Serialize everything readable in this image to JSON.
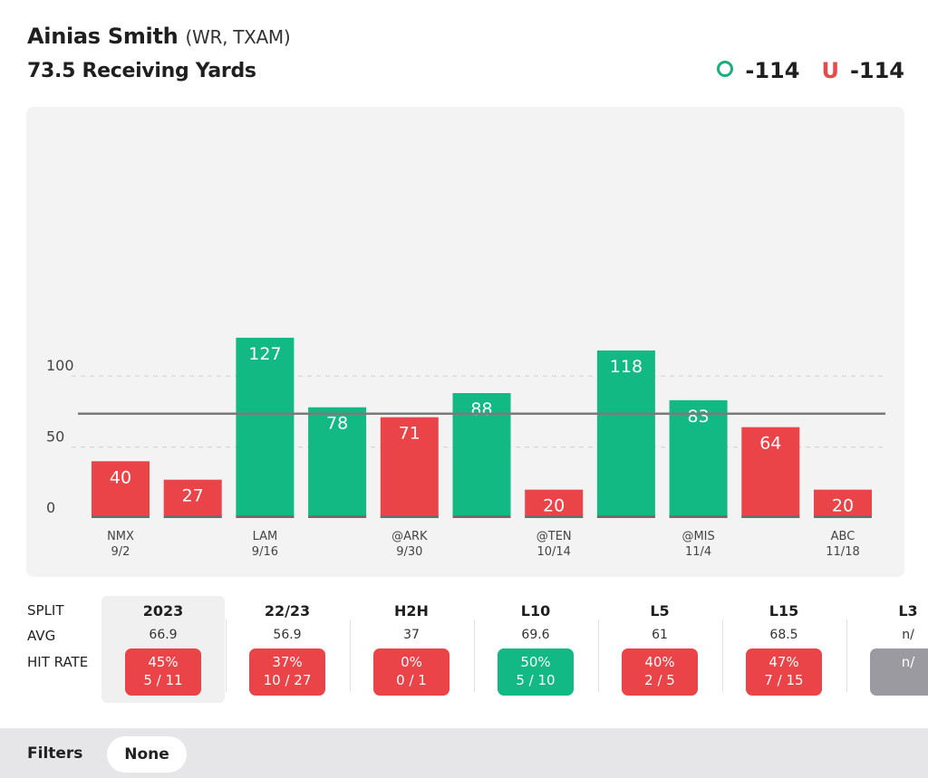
{
  "header": {
    "player_name": "Ainias Smith",
    "player_meta": "(WR, TXAM)",
    "prop_line": "73.5 Receiving Yards",
    "over_symbol": "O",
    "over_odds": "-114",
    "under_symbol": "U",
    "under_odds": "-114"
  },
  "colors": {
    "over": "#13b982",
    "under": "#ea4448",
    "line": "#7a7a7a"
  },
  "chart_data": {
    "type": "bar",
    "title": "73.5 Receiving Yards",
    "threshold": 73.5,
    "ylim": [
      0,
      135
    ],
    "yticks": [
      0,
      50,
      100
    ],
    "values": [
      40,
      27,
      127,
      78,
      71,
      88,
      20,
      118,
      83,
      64,
      20
    ],
    "x_labels": [
      {
        "index": 0,
        "team": "NMX",
        "date": "9/2"
      },
      {
        "index": 2,
        "team": "LAM",
        "date": "9/16"
      },
      {
        "index": 4,
        "team": "@ARK",
        "date": "9/30"
      },
      {
        "index": 6,
        "team": "@TEN",
        "date": "10/14"
      },
      {
        "index": 8,
        "team": "@MIS",
        "date": "11/4"
      },
      {
        "index": 10,
        "team": "ABC",
        "date": "11/18"
      }
    ]
  },
  "splits": {
    "row_labels": {
      "split": "SPLIT",
      "avg": "AVG",
      "hit_rate": "HIT RATE"
    },
    "columns": [
      {
        "name": "2023",
        "avg": "66.9",
        "pct": "45%",
        "frac": "5 / 11",
        "status": "red",
        "selected": true
      },
      {
        "name": "22/23",
        "avg": "56.9",
        "pct": "37%",
        "frac": "10 / 27",
        "status": "red",
        "selected": false
      },
      {
        "name": "H2H",
        "avg": "37",
        "pct": "0%",
        "frac": "0 / 1",
        "status": "red",
        "selected": false
      },
      {
        "name": "L10",
        "avg": "69.6",
        "pct": "50%",
        "frac": "5 / 10",
        "status": "green",
        "selected": false
      },
      {
        "name": "L5",
        "avg": "61",
        "pct": "40%",
        "frac": "2 / 5",
        "status": "red",
        "selected": false
      },
      {
        "name": "L15",
        "avg": "68.5",
        "pct": "47%",
        "frac": "7 / 15",
        "status": "red",
        "selected": false
      },
      {
        "name": "L3",
        "avg": "n/",
        "pct": "n/",
        "frac": "",
        "status": "grey",
        "selected": false
      }
    ]
  },
  "filters": {
    "label": "Filters",
    "value": "None"
  }
}
